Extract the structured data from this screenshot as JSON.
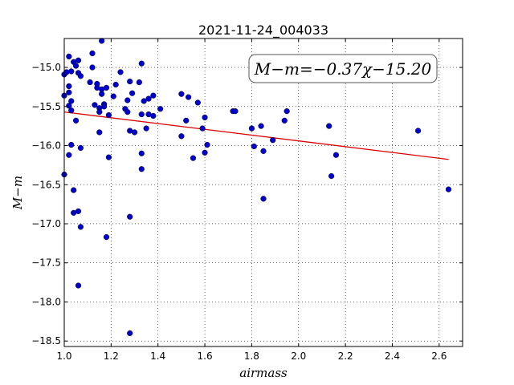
{
  "chart_data": {
    "type": "scatter",
    "title": "2021-11-24_004033",
    "xlabel": "airmass",
    "ylabel": "M−m",
    "xlim": [
      1.0,
      2.7
    ],
    "ylim": [
      -18.57,
      -14.63
    ],
    "x_ticks": [
      "1.0",
      "1.2",
      "1.4",
      "1.6",
      "1.8",
      "2.0",
      "2.2",
      "2.4",
      "2.6"
    ],
    "y_ticks": [
      "−15.0",
      "−15.5",
      "−16.0",
      "−16.5",
      "−17.0",
      "−17.5",
      "−18.0",
      "−18.5"
    ],
    "grid": true,
    "annotation": "M−m=−0.37χ−15.20",
    "fit": {
      "slope": -0.37,
      "intercept": -15.2,
      "x_range": [
        1.0,
        2.64
      ],
      "color": "#dd0000"
    },
    "point_color": "#0000cc",
    "points": [
      [
        1.0,
        -15.09
      ],
      [
        1.0,
        -15.36
      ],
      [
        1.0,
        -16.37
      ],
      [
        1.01,
        -15.06
      ],
      [
        1.02,
        -14.86
      ],
      [
        1.02,
        -15.24
      ],
      [
        1.02,
        -15.49
      ],
      [
        1.03,
        -15.05
      ],
      [
        1.02,
        -15.32
      ],
      [
        1.03,
        -15.43
      ],
      [
        1.03,
        -15.55
      ],
      [
        1.02,
        -16.12
      ],
      [
        1.03,
        -15.99
      ],
      [
        1.04,
        -16.57
      ],
      [
        1.04,
        -16.86
      ],
      [
        1.04,
        -14.93
      ],
      [
        1.05,
        -14.98
      ],
      [
        1.06,
        -14.91
      ],
      [
        1.06,
        -15.07
      ],
      [
        1.07,
        -15.11
      ],
      [
        1.05,
        -15.68
      ],
      [
        1.06,
        -16.84
      ],
      [
        1.07,
        -17.04
      ],
      [
        1.07,
        -16.03
      ],
      [
        1.06,
        -17.79
      ],
      [
        1.11,
        -15.19
      ],
      [
        1.12,
        -14.82
      ],
      [
        1.12,
        -15.0
      ],
      [
        1.13,
        -15.48
      ],
      [
        1.14,
        -15.26
      ],
      [
        1.14,
        -15.21
      ],
      [
        1.15,
        -15.52
      ],
      [
        1.15,
        -15.57
      ],
      [
        1.15,
        -15.83
      ],
      [
        1.16,
        -15.34
      ],
      [
        1.16,
        -15.28
      ],
      [
        1.17,
        -15.47
      ],
      [
        1.17,
        -15.5
      ],
      [
        1.16,
        -14.66
      ],
      [
        1.18,
        -15.26
      ],
      [
        1.19,
        -15.61
      ],
      [
        1.19,
        -16.15
      ],
      [
        1.18,
        -17.17
      ],
      [
        1.21,
        -15.37
      ],
      [
        1.22,
        -15.22
      ],
      [
        1.24,
        -15.06
      ],
      [
        1.26,
        -15.53
      ],
      [
        1.27,
        -15.57
      ],
      [
        1.27,
        -15.42
      ],
      [
        1.28,
        -15.18
      ],
      [
        1.28,
        -15.81
      ],
      [
        1.28,
        -16.91
      ],
      [
        1.29,
        -15.33
      ],
      [
        1.3,
        -15.83
      ],
      [
        1.32,
        -15.19
      ],
      [
        1.33,
        -14.95
      ],
      [
        1.33,
        -15.6
      ],
      [
        1.33,
        -16.1
      ],
      [
        1.33,
        -16.3
      ],
      [
        1.34,
        -15.43
      ],
      [
        1.35,
        -15.78
      ],
      [
        1.36,
        -15.4
      ],
      [
        1.36,
        -15.6
      ],
      [
        1.38,
        -15.62
      ],
      [
        1.38,
        -15.36
      ],
      [
        1.41,
        -15.53
      ],
      [
        1.28,
        -18.4
      ],
      [
        1.5,
        -15.34
      ],
      [
        1.5,
        -15.88
      ],
      [
        1.52,
        -15.68
      ],
      [
        1.53,
        -15.38
      ],
      [
        1.55,
        -16.16
      ],
      [
        1.57,
        -15.45
      ],
      [
        1.59,
        -15.78
      ],
      [
        1.6,
        -15.64
      ],
      [
        1.6,
        -16.09
      ],
      [
        1.61,
        -15.99
      ],
      [
        1.72,
        -15.56
      ],
      [
        1.73,
        -15.56
      ],
      [
        1.8,
        -15.78
      ],
      [
        1.81,
        -16.01
      ],
      [
        1.84,
        -15.75
      ],
      [
        1.85,
        -16.07
      ],
      [
        1.85,
        -16.68
      ],
      [
        1.89,
        -15.93
      ],
      [
        1.94,
        -15.68
      ],
      [
        1.95,
        -15.56
      ],
      [
        2.13,
        -15.75
      ],
      [
        2.14,
        -16.39
      ],
      [
        2.16,
        -16.12
      ],
      [
        2.51,
        -15.81
      ],
      [
        2.64,
        -16.56
      ]
    ]
  }
}
